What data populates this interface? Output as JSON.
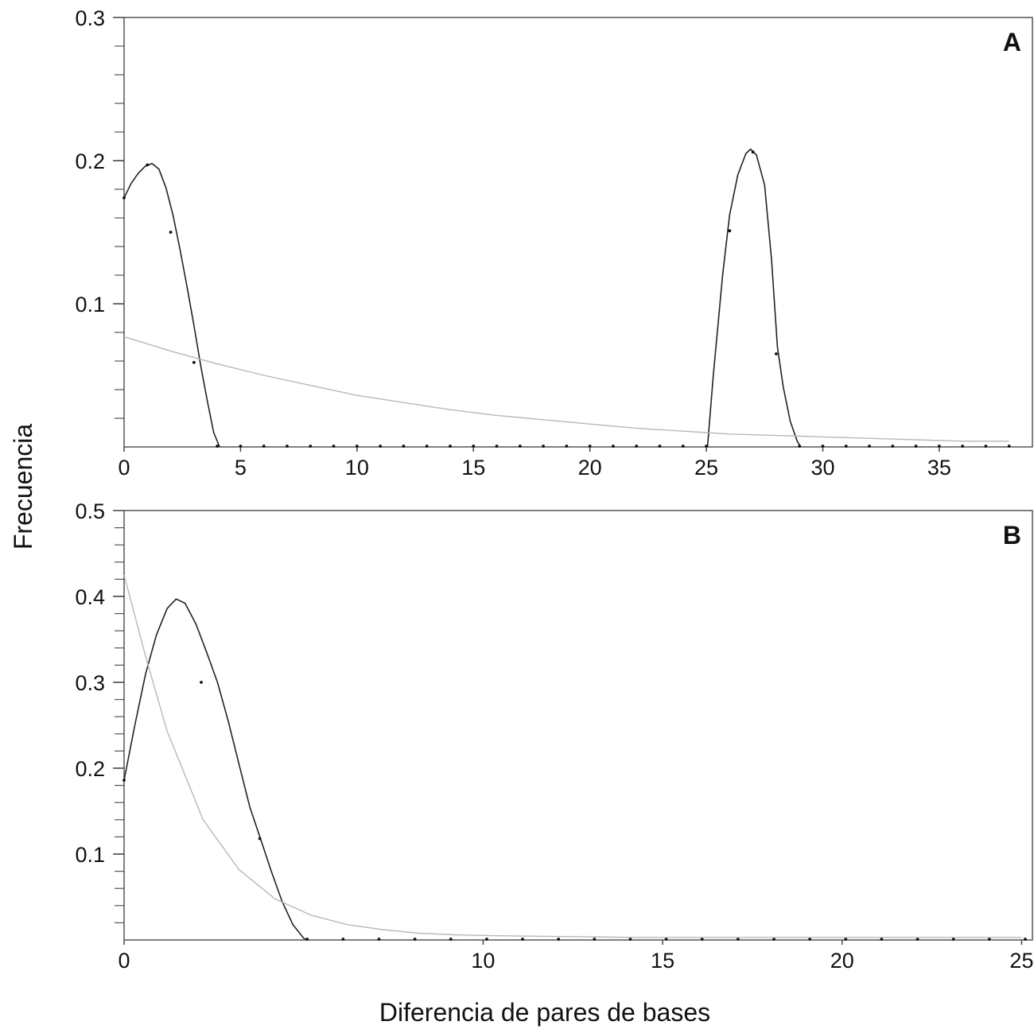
{
  "figure": {
    "ylabel": "Frecuencia",
    "xlabel": "Diferencia de pares de bases"
  },
  "chart_data": [
    {
      "type": "line",
      "panel_label": "A",
      "xlabel": "",
      "ylabel": "",
      "xlim": [
        0,
        39
      ],
      "ylim": [
        0,
        0.3
      ],
      "x_ticks": [
        0,
        5,
        10,
        15,
        20,
        25,
        30,
        35
      ],
      "x_tick_labels": [
        "0",
        "5",
        "10",
        "15",
        "20",
        "25",
        "30",
        "35"
      ],
      "y_ticks": [
        0.1,
        0.2,
        0.3
      ],
      "y_tick_labels": [
        "0.1",
        "0.2",
        "0.3"
      ],
      "y_minor_step": 0.02,
      "grid": false,
      "series": [
        {
          "role": "observed",
          "color": "#222222",
          "curve": [
            [
              0,
              0.174
            ],
            [
              0.3,
              0.184
            ],
            [
              0.6,
              0.191
            ],
            [
              0.9,
              0.196
            ],
            [
              1.2,
              0.198
            ],
            [
              1.5,
              0.194
            ],
            [
              1.8,
              0.181
            ],
            [
              2.1,
              0.162
            ],
            [
              2.4,
              0.138
            ],
            [
              2.7,
              0.112
            ],
            [
              3.0,
              0.085
            ],
            [
              3.3,
              0.056
            ],
            [
              3.6,
              0.03
            ],
            [
              3.85,
              0.01
            ],
            [
              4.1,
              0
            ]
          ],
          "curve2": [
            [
              25.05,
              0
            ],
            [
              25.3,
              0.05
            ],
            [
              25.7,
              0.12
            ],
            [
              26.0,
              0.162
            ],
            [
              26.35,
              0.19
            ],
            [
              26.7,
              0.205
            ],
            [
              26.9,
              0.208
            ],
            [
              27.15,
              0.204
            ],
            [
              27.5,
              0.183
            ],
            [
              27.8,
              0.131
            ],
            [
              28.05,
              0.07
            ],
            [
              28.3,
              0.042
            ],
            [
              28.6,
              0.018
            ],
            [
              28.9,
              0.004
            ],
            [
              29.05,
              0
            ]
          ],
          "points": [
            [
              0,
              0.174
            ],
            [
              1,
              0.197
            ],
            [
              2,
              0.15
            ],
            [
              3,
              0.059
            ],
            [
              4,
              0
            ],
            [
              5,
              0
            ],
            [
              6,
              0
            ],
            [
              7,
              0
            ],
            [
              8,
              0
            ],
            [
              9,
              0
            ],
            [
              10,
              0
            ],
            [
              11,
              0
            ],
            [
              12,
              0
            ],
            [
              13,
              0
            ],
            [
              14,
              0
            ],
            [
              15,
              0
            ],
            [
              16,
              0
            ],
            [
              17,
              0
            ],
            [
              18,
              0
            ],
            [
              19,
              0
            ],
            [
              20,
              0
            ],
            [
              21,
              0
            ],
            [
              22,
              0
            ],
            [
              23,
              0
            ],
            [
              24,
              0
            ],
            [
              25,
              0
            ],
            [
              26,
              0.151
            ],
            [
              27,
              0.206
            ],
            [
              28,
              0.065
            ],
            [
              29,
              0
            ],
            [
              30,
              0
            ],
            [
              31,
              0
            ],
            [
              32,
              0
            ],
            [
              33,
              0
            ],
            [
              34,
              0
            ],
            [
              35,
              0
            ],
            [
              36,
              0
            ],
            [
              37,
              0
            ],
            [
              38,
              0
            ]
          ]
        },
        {
          "role": "expected",
          "color": "#b8b8b8",
          "curve": [
            [
              0,
              0.077
            ],
            [
              2,
              0.067
            ],
            [
              4,
              0.058
            ],
            [
              6,
              0.05
            ],
            [
              8,
              0.043
            ],
            [
              10,
              0.036
            ],
            [
              12,
              0.031
            ],
            [
              14,
              0.026
            ],
            [
              16,
              0.022
            ],
            [
              18,
              0.019
            ],
            [
              20,
              0.016
            ],
            [
              22,
              0.013
            ],
            [
              24,
              0.011
            ],
            [
              26,
              0.009
            ],
            [
              28,
              0.008
            ],
            [
              30,
              0.007
            ],
            [
              32,
              0.006
            ],
            [
              34,
              0.005
            ],
            [
              36,
              0.004
            ],
            [
              38,
              0.004
            ]
          ]
        }
      ]
    },
    {
      "type": "line",
      "panel_label": "B",
      "xlabel": "",
      "ylabel": "",
      "xlim": [
        0,
        25.3
      ],
      "ylim": [
        0,
        0.5
      ],
      "x_ticks": [
        0,
        10,
        15,
        20,
        25
      ],
      "x_tick_labels": [
        "0",
        "10",
        "15",
        "20",
        "25"
      ],
      "y_ticks": [
        0.1,
        0.2,
        0.3,
        0.4,
        0.5
      ],
      "y_tick_labels": [
        "0.1",
        "0.2",
        "0.3",
        "0.4",
        "0.5"
      ],
      "y_minor_step": 0.02,
      "grid": false,
      "series": [
        {
          "role": "observed",
          "color": "#222222",
          "curve": [
            [
              0,
              0.186
            ],
            [
              0.3,
              0.25
            ],
            [
              0.6,
              0.31
            ],
            [
              0.9,
              0.355
            ],
            [
              1.2,
              0.386
            ],
            [
              1.45,
              0.397
            ],
            [
              1.7,
              0.392
            ],
            [
              2.0,
              0.368
            ],
            [
              2.3,
              0.335
            ],
            [
              2.6,
              0.3
            ],
            [
              2.9,
              0.255
            ],
            [
              3.2,
              0.205
            ],
            [
              3.5,
              0.155
            ],
            [
              3.8,
              0.118
            ],
            [
              4.1,
              0.08
            ],
            [
              4.4,
              0.045
            ],
            [
              4.7,
              0.018
            ],
            [
              5.0,
              0.002
            ],
            [
              5.1,
              0
            ]
          ],
          "points": [
            [
              0,
              0.186
            ],
            [
              2.15,
              0.3
            ],
            [
              3.78,
              0.118
            ],
            [
              5.1,
              0
            ],
            [
              6.1,
              0
            ],
            [
              7.1,
              0
            ],
            [
              8.1,
              0
            ],
            [
              9.1,
              0
            ],
            [
              10.1,
              0
            ],
            [
              11.1,
              0
            ],
            [
              12.1,
              0
            ],
            [
              13.1,
              0
            ],
            [
              14.1,
              0
            ],
            [
              15.1,
              0
            ],
            [
              16.1,
              0
            ],
            [
              17.1,
              0
            ],
            [
              18.1,
              0
            ],
            [
              19.1,
              0
            ],
            [
              20.1,
              0
            ],
            [
              21.1,
              0
            ],
            [
              22.1,
              0
            ],
            [
              23.1,
              0
            ],
            [
              24.1,
              0
            ],
            [
              25.1,
              0
            ]
          ]
        },
        {
          "role": "expected",
          "color": "#b8b8b8",
          "curve": [
            [
              0,
              0.425
            ],
            [
              0.6,
              0.33
            ],
            [
              1.2,
              0.243
            ],
            [
              2.2,
              0.14
            ],
            [
              3.2,
              0.082
            ],
            [
              4.2,
              0.048
            ],
            [
              5.2,
              0.029
            ],
            [
              6.2,
              0.018
            ],
            [
              7.2,
              0.012
            ],
            [
              8.2,
              0.008
            ],
            [
              9.2,
              0.006
            ],
            [
              10.2,
              0.005
            ],
            [
              12.2,
              0.004
            ],
            [
              14.2,
              0.003
            ],
            [
              16.2,
              0.003
            ],
            [
              18.2,
              0.003
            ],
            [
              20.2,
              0.003
            ],
            [
              22.2,
              0.003
            ],
            [
              24.2,
              0.003
            ],
            [
              25.0,
              0.003
            ]
          ]
        }
      ]
    }
  ]
}
